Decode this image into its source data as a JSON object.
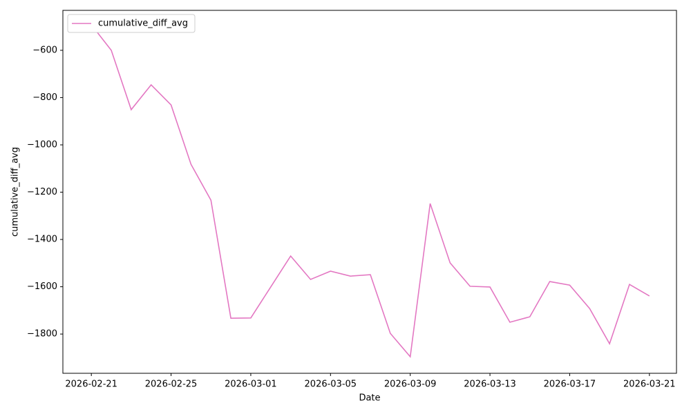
{
  "chart_data": {
    "type": "line",
    "x_label": "Date",
    "y_label": "cumulative_diff_avg",
    "x": [
      "2026-02-21",
      "2026-02-22",
      "2026-02-23",
      "2026-02-24",
      "2026-02-25",
      "2026-02-26",
      "2026-02-27",
      "2026-02-28",
      "2026-03-01",
      "2026-03-02",
      "2026-03-03",
      "2026-03-04",
      "2026-03-05",
      "2026-03-06",
      "2026-03-07",
      "2026-03-08",
      "2026-03-09",
      "2026-03-10",
      "2026-03-11",
      "2026-03-12",
      "2026-03-13",
      "2026-03-14",
      "2026-03-15",
      "2026-03-16",
      "2026-03-17",
      "2026-03-18",
      "2026-03-19",
      "2026-03-20",
      "2026-03-21"
    ],
    "series": [
      {
        "name": "cumulative_diff_avg",
        "color": "#e377c2",
        "values": [
          -492,
          -600,
          -851,
          -746,
          -831,
          -1082,
          -1234,
          -1733,
          -1732,
          -1601,
          -1470,
          -1569,
          -1534,
          -1555,
          -1549,
          -1797,
          -1896,
          -1248,
          -1499,
          -1598,
          -1601,
          -1750,
          -1727,
          -1578,
          -1593,
          -1692,
          -1841,
          -1590,
          -1639
        ]
      }
    ],
    "xlim": [
      "2026-02-19T13:44",
      "2026-03-22T08:36"
    ],
    "xticks": [
      "2026-02-21",
      "2026-02-25",
      "2026-03-01",
      "2026-03-05",
      "2026-03-09",
      "2026-03-13",
      "2026-03-17",
      "2026-03-21"
    ],
    "ylim": [
      -1966,
      -431
    ],
    "yticks": [
      {
        "value": -1800,
        "label": "−1800"
      },
      {
        "value": -1600,
        "label": "−1600"
      },
      {
        "value": -1400,
        "label": "−1400"
      },
      {
        "value": -1200,
        "label": "−1200"
      },
      {
        "value": -1000,
        "label": "−1000"
      },
      {
        "value": -800,
        "label": "−800"
      },
      {
        "value": -600,
        "label": "−600"
      }
    ],
    "legend": "upper left",
    "grid": false
  }
}
